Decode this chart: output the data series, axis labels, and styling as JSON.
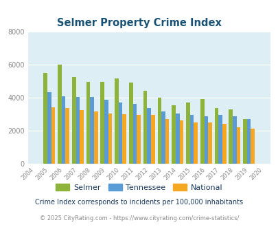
{
  "title": "Selmer Property Crime Index",
  "years": [
    2004,
    2005,
    2006,
    2007,
    2008,
    2009,
    2010,
    2011,
    2012,
    2013,
    2014,
    2015,
    2016,
    2017,
    2018,
    2019,
    2020
  ],
  "selmer": [
    null,
    5500,
    6000,
    5250,
    4950,
    4950,
    5150,
    4900,
    4400,
    4000,
    3550,
    3700,
    3900,
    3350,
    3300,
    2700,
    null
  ],
  "tennessee": [
    null,
    4350,
    4100,
    4050,
    4050,
    3850,
    3700,
    3600,
    3350,
    3150,
    3050,
    2950,
    2850,
    2950,
    2850,
    2700,
    null
  ],
  "national": [
    null,
    3400,
    3350,
    3250,
    3150,
    3050,
    3000,
    2950,
    2950,
    2700,
    2600,
    2500,
    2500,
    2400,
    2200,
    2100,
    null
  ],
  "selmer_color": "#8db33a",
  "tennessee_color": "#5b9bd5",
  "national_color": "#f5a623",
  "bg_color": "#ddeef5",
  "ylim": [
    0,
    8000
  ],
  "yticks": [
    0,
    2000,
    4000,
    6000,
    8000
  ],
  "legend_labels": [
    "Selmer",
    "Tennessee",
    "National"
  ],
  "footnote1": "Crime Index corresponds to incidents per 100,000 inhabitants",
  "footnote2": "© 2025 CityRating.com - https://www.cityrating.com/crime-statistics/",
  "title_color": "#1a5276",
  "footnote1_color": "#1a3a5c",
  "footnote2_color": "#888888",
  "legend_text_color": "#1a3a5c"
}
